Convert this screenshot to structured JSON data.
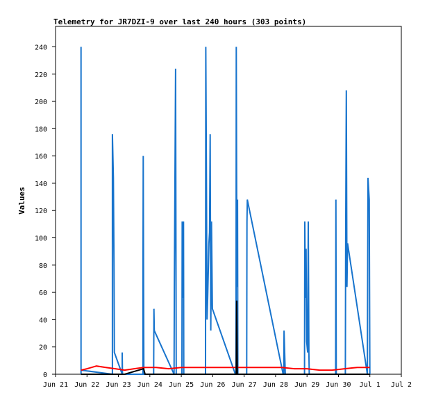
{
  "chart_data": {
    "type": "line",
    "title": "Telemetry for JR7DZI-9 over last 240 hours (303 points)",
    "xlabel": "",
    "ylabel": "Values",
    "xlim": [
      21.0,
      32.0
    ],
    "ylim": [
      0,
      255
    ],
    "grid": false,
    "x_ticks": [
      {
        "pos": 21.0,
        "label": "Jun 21"
      },
      {
        "pos": 22.0,
        "label": "Jun 22"
      },
      {
        "pos": 23.0,
        "label": "Jun 23"
      },
      {
        "pos": 24.0,
        "label": "Jun 24"
      },
      {
        "pos": 25.0,
        "label": "Jun 25"
      },
      {
        "pos": 26.0,
        "label": "Jun 26"
      },
      {
        "pos": 27.0,
        "label": "Jun 27"
      },
      {
        "pos": 28.0,
        "label": "Jun 28"
      },
      {
        "pos": 29.0,
        "label": "Jun 29"
      },
      {
        "pos": 30.0,
        "label": "Jun 30"
      },
      {
        "pos": 31.0,
        "label": "Jul 1"
      },
      {
        "pos": 32.0,
        "label": "Jul 2"
      }
    ],
    "y_ticks": [
      0,
      20,
      40,
      60,
      80,
      100,
      120,
      140,
      160,
      180,
      200,
      220,
      240
    ],
    "series": [
      {
        "color": "#1874cd",
        "points": [
          [
            21.81,
            0
          ],
          [
            21.81,
            240
          ],
          [
            21.81,
            3
          ],
          [
            22.81,
            0
          ],
          [
            22.81,
            176
          ],
          [
            22.84,
            144
          ],
          [
            22.86,
            80
          ],
          [
            22.87,
            16
          ],
          [
            23.12,
            0
          ],
          [
            23.12,
            16
          ],
          [
            23.13,
            0
          ],
          [
            23.78,
            0
          ],
          [
            23.78,
            64
          ],
          [
            23.79,
            160
          ],
          [
            23.8,
            64
          ],
          [
            23.81,
            0
          ],
          [
            24.12,
            0
          ],
          [
            24.13,
            48
          ],
          [
            24.14,
            32
          ],
          [
            24.77,
            0
          ],
          [
            24.78,
            64
          ],
          [
            24.8,
            144
          ],
          [
            24.82,
            224
          ],
          [
            24.84,
            0
          ],
          [
            25.02,
            0
          ],
          [
            25.03,
            112
          ],
          [
            25.05,
            56
          ],
          [
            25.07,
            112
          ],
          [
            25.08,
            0
          ],
          [
            25.77,
            0
          ],
          [
            25.78,
            240
          ],
          [
            25.8,
            144
          ],
          [
            25.82,
            40
          ],
          [
            25.84,
            56
          ],
          [
            25.88,
            96
          ],
          [
            25.9,
            104
          ],
          [
            25.92,
            176
          ],
          [
            25.94,
            32
          ],
          [
            25.96,
            112
          ],
          [
            25.99,
            48
          ],
          [
            26.72,
            0
          ],
          [
            26.74,
            0
          ],
          [
            26.75,
            240
          ],
          [
            26.77,
            64
          ],
          [
            26.79,
            128
          ],
          [
            26.8,
            0
          ],
          [
            27.08,
            0
          ],
          [
            27.09,
            112
          ],
          [
            27.1,
            128
          ],
          [
            28.24,
            0
          ],
          [
            28.26,
            0
          ],
          [
            28.27,
            32
          ],
          [
            28.29,
            16
          ],
          [
            28.31,
            0
          ],
          [
            28.92,
            0
          ],
          [
            28.93,
            112
          ],
          [
            28.95,
            56
          ],
          [
            28.97,
            92
          ],
          [
            28.99,
            24
          ],
          [
            29.02,
            16
          ],
          [
            29.04,
            112
          ],
          [
            29.06,
            16
          ],
          [
            29.07,
            0
          ],
          [
            29.91,
            0
          ],
          [
            29.92,
            128
          ],
          [
            29.93,
            0
          ],
          [
            30.22,
            0
          ],
          [
            30.23,
            104
          ],
          [
            30.25,
            208
          ],
          [
            30.27,
            64
          ],
          [
            30.29,
            96
          ],
          [
            30.92,
            0
          ],
          [
            30.94,
            144
          ],
          [
            30.96,
            136
          ],
          [
            30.98,
            128
          ],
          [
            31.0,
            0
          ]
        ]
      },
      {
        "color": "#ff0000",
        "points": [
          [
            21.81,
            3
          ],
          [
            22.0,
            4
          ],
          [
            22.3,
            6
          ],
          [
            22.6,
            5
          ],
          [
            22.9,
            4
          ],
          [
            23.2,
            3
          ],
          [
            23.5,
            4
          ],
          [
            23.8,
            5
          ],
          [
            24.2,
            5
          ],
          [
            24.6,
            4
          ],
          [
            25.0,
            5
          ],
          [
            25.4,
            5
          ],
          [
            25.8,
            5
          ],
          [
            26.2,
            5
          ],
          [
            26.6,
            5
          ],
          [
            27.0,
            5
          ],
          [
            27.4,
            5
          ],
          [
            27.8,
            5
          ],
          [
            28.2,
            5
          ],
          [
            28.6,
            4
          ],
          [
            29.0,
            4
          ],
          [
            29.4,
            3
          ],
          [
            29.8,
            3
          ],
          [
            30.2,
            4
          ],
          [
            30.6,
            5
          ],
          [
            31.0,
            5
          ]
        ]
      },
      {
        "color": "#000000",
        "points": [
          [
            21.81,
            0
          ],
          [
            23.2,
            0
          ],
          [
            23.8,
            4
          ],
          [
            23.85,
            0
          ],
          [
            26.75,
            0
          ],
          [
            26.76,
            54
          ],
          [
            26.78,
            0
          ],
          [
            31.0,
            0
          ]
        ]
      }
    ]
  }
}
